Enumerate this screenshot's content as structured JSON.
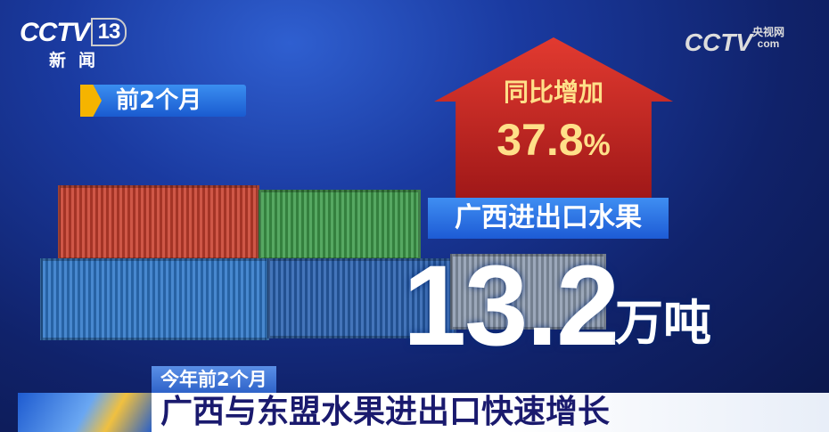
{
  "channel_logo": {
    "brand": "CCTV",
    "number": "13",
    "name": "新闻"
  },
  "watermark": {
    "brand": "CCTV",
    "domain": "com",
    "name": "央视网"
  },
  "period_tag": "前2个月",
  "growth": {
    "label": "同比增加",
    "value": "37.8",
    "unit": "%"
  },
  "metric_label": "广西进出口水果",
  "total": {
    "value": "13.2",
    "unit": "万吨"
  },
  "lower_third": {
    "tag": "今年前2个月",
    "headline": "广西与东盟水果进出口快速增长"
  },
  "colors": {
    "arrow": "#c8241e",
    "label": "#2f75e6",
    "highlight": "#ffe089",
    "headline": "#1a1a6e"
  }
}
